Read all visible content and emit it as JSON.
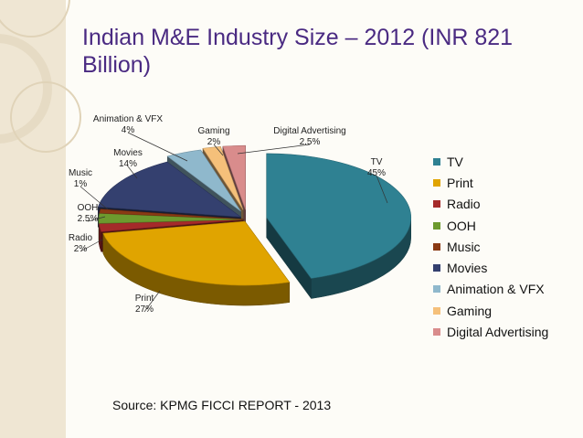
{
  "title": "Indian M&E Industry Size – 2012 (INR 821 Billion)",
  "source": "Source: KPMG FICCI REPORT - 2013",
  "chart_data": {
    "type": "pie",
    "variant": "3d-exploded",
    "legend_position": "right",
    "slices": [
      {
        "name": "TV",
        "value": 45,
        "label": "45%",
        "color": "#2f8192"
      },
      {
        "name": "Print",
        "value": 27,
        "label": "27%",
        "color": "#e0a400"
      },
      {
        "name": "Radio",
        "value": 2,
        "label": "2%",
        "color": "#a52a2a"
      },
      {
        "name": "OOH",
        "value": 2.5,
        "label": "2.5%",
        "color": "#6d9a2e"
      },
      {
        "name": "Music",
        "value": 1,
        "label": "1%",
        "color": "#8a3a14"
      },
      {
        "name": "Movies",
        "value": 14,
        "label": "14%",
        "color": "#34406f"
      },
      {
        "name": "Animation & VFX",
        "value": 4,
        "label": "4%",
        "color": "#8fb8cc"
      },
      {
        "name": "Gaming",
        "value": 2,
        "label": "2%",
        "color": "#f5c07a"
      },
      {
        "name": "Digital Advertising",
        "value": 2.5,
        "label": "2.5%",
        "color": "#d98c8c"
      }
    ]
  }
}
